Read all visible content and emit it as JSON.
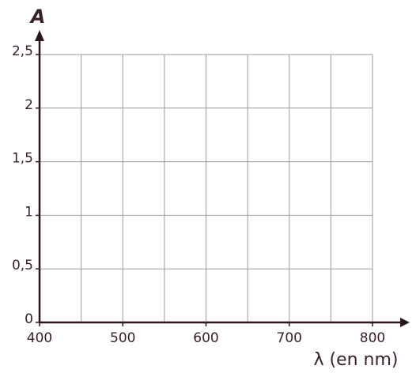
{
  "chart_data": {
    "type": "line",
    "ylabel": "A",
    "xlabel": "λ (en nm)",
    "xlim": [
      400,
      800
    ],
    "ylim": [
      0,
      2.5
    ],
    "xticks": [
      400,
      500,
      600,
      700,
      800
    ],
    "x_minor_grid": [
      450,
      550,
      650,
      750
    ],
    "yticks": [
      0,
      {
        "value": 0.5,
        "label": "0,5"
      },
      1,
      {
        "value": 1.5,
        "label": "1,5"
      },
      2,
      {
        "value": 2.5,
        "label": "2,5"
      }
    ],
    "grid": true,
    "series": []
  }
}
